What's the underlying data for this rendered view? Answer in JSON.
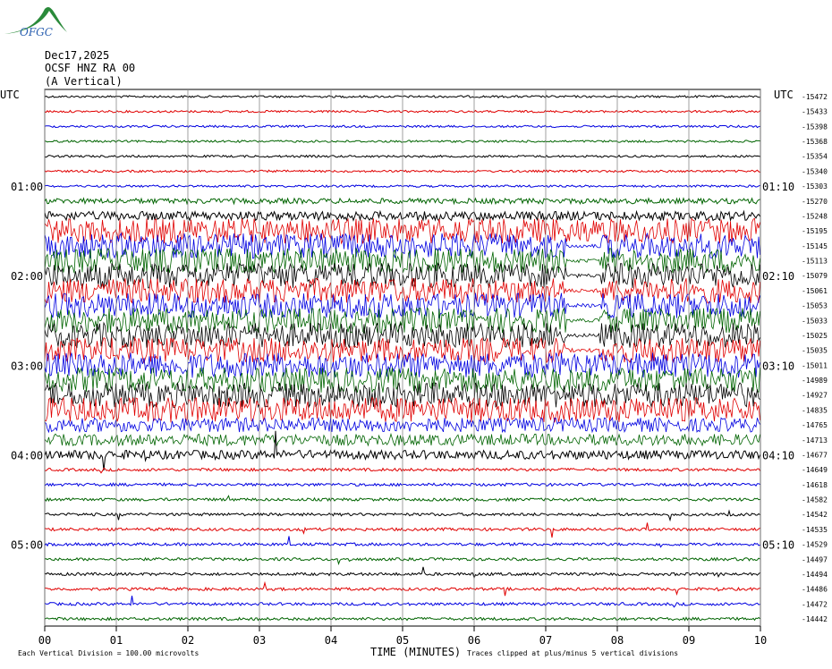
{
  "header": {
    "logo": "OFGC",
    "date": "Dec17,2025",
    "station": "OCSF HNZ RA 00",
    "component": "(A Vertical)",
    "utc_left": "UTC",
    "utc_right": "UTC"
  },
  "left_labels": [
    null,
    null,
    null,
    null,
    null,
    null,
    "01:00",
    null,
    null,
    null,
    null,
    null,
    "02:00",
    null,
    null,
    null,
    null,
    null,
    "03:00",
    null,
    null,
    null,
    null,
    null,
    "04:00",
    null,
    null,
    null,
    null,
    null,
    "05:00",
    null,
    null,
    null,
    null,
    null
  ],
  "right_time_labels": [
    null,
    null,
    null,
    null,
    null,
    null,
    "01:10",
    null,
    null,
    null,
    null,
    null,
    "02:10",
    null,
    null,
    null,
    null,
    null,
    "03:10",
    null,
    null,
    null,
    null,
    null,
    "04:10",
    null,
    null,
    null,
    null,
    null,
    "05:10",
    null,
    null,
    null,
    null,
    null
  ],
  "right_labels": [
    "-15472",
    "-15433",
    "-15398",
    "-15368",
    "-15354",
    "-15340",
    "-15303",
    "-15270",
    "-15248",
    "-15195",
    "-15145",
    "-15113",
    "-15079",
    "-15061",
    "-15053",
    "-15033",
    "-15025",
    "-15035",
    "-15011",
    "-14989",
    "-14927",
    "-14835",
    "-14765",
    "-14713",
    "-14677",
    "-14649",
    "-14618",
    "-14582",
    "-14542",
    "-14535",
    "-14529",
    "-14497",
    "-14494",
    "-14486",
    "-14472",
    "-14442"
  ],
  "x_labels": [
    "00",
    "01",
    "02",
    "03",
    "04",
    "05",
    "06",
    "07",
    "08",
    "09",
    "10"
  ],
  "footer": {
    "division": "Each Vertical Division =  100.00 microvolts",
    "axis_title": "TIME (MINUTES)",
    "clip_note": "Traces clipped at plus/minus 5 vertical divisions"
  }
}
